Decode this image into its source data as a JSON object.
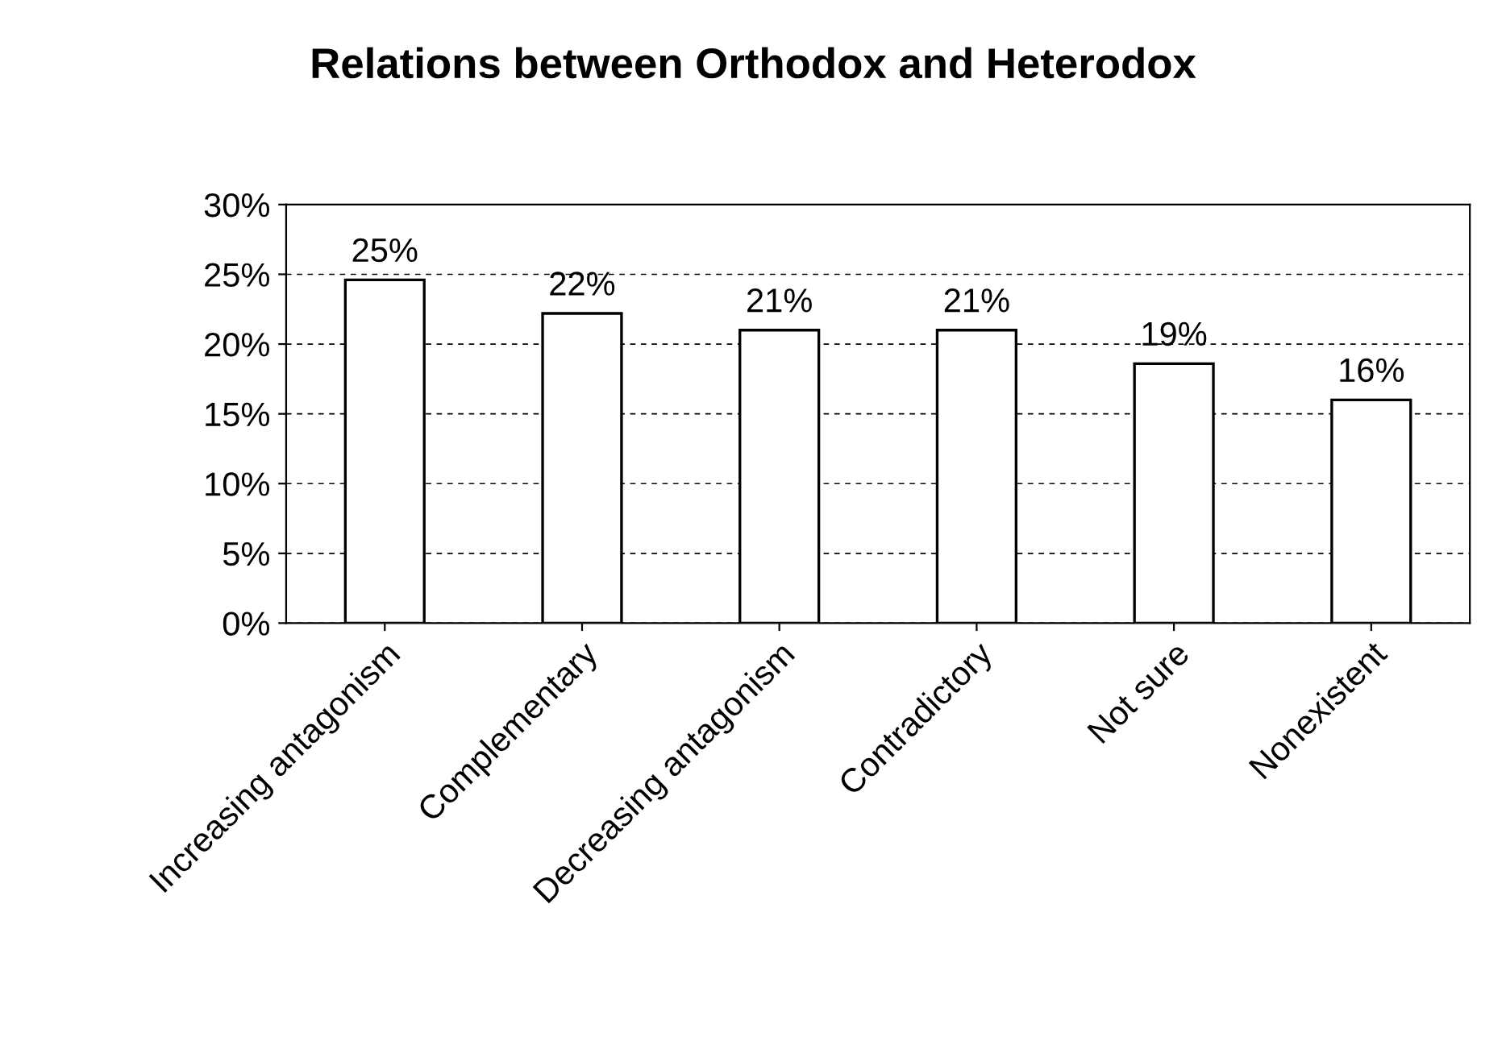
{
  "chart_data": {
    "type": "bar",
    "title": "Relations between Orthodox and Heterodox",
    "categories": [
      "Increasing antagonism",
      "Complementary",
      "Decreasing antagonism",
      "Contradictory",
      "Not sure",
      "Nonexistent"
    ],
    "values": [
      24.6,
      22.2,
      21.0,
      21.0,
      18.6,
      16.0
    ],
    "value_labels": [
      "25%",
      "22%",
      "21%",
      "21%",
      "19%",
      "16%"
    ],
    "color": "#ffffff",
    "ylim": [
      0,
      30
    ],
    "yticks": [
      {
        "value": 0,
        "label": "0%"
      },
      {
        "value": 5,
        "label": "5%"
      },
      {
        "value": 10,
        "label": "10%"
      },
      {
        "value": 15,
        "label": "15%"
      },
      {
        "value": 20,
        "label": "20%"
      },
      {
        "value": 25,
        "label": "25%"
      },
      {
        "value": 30,
        "label": "30%"
      }
    ],
    "grid": "y"
  }
}
